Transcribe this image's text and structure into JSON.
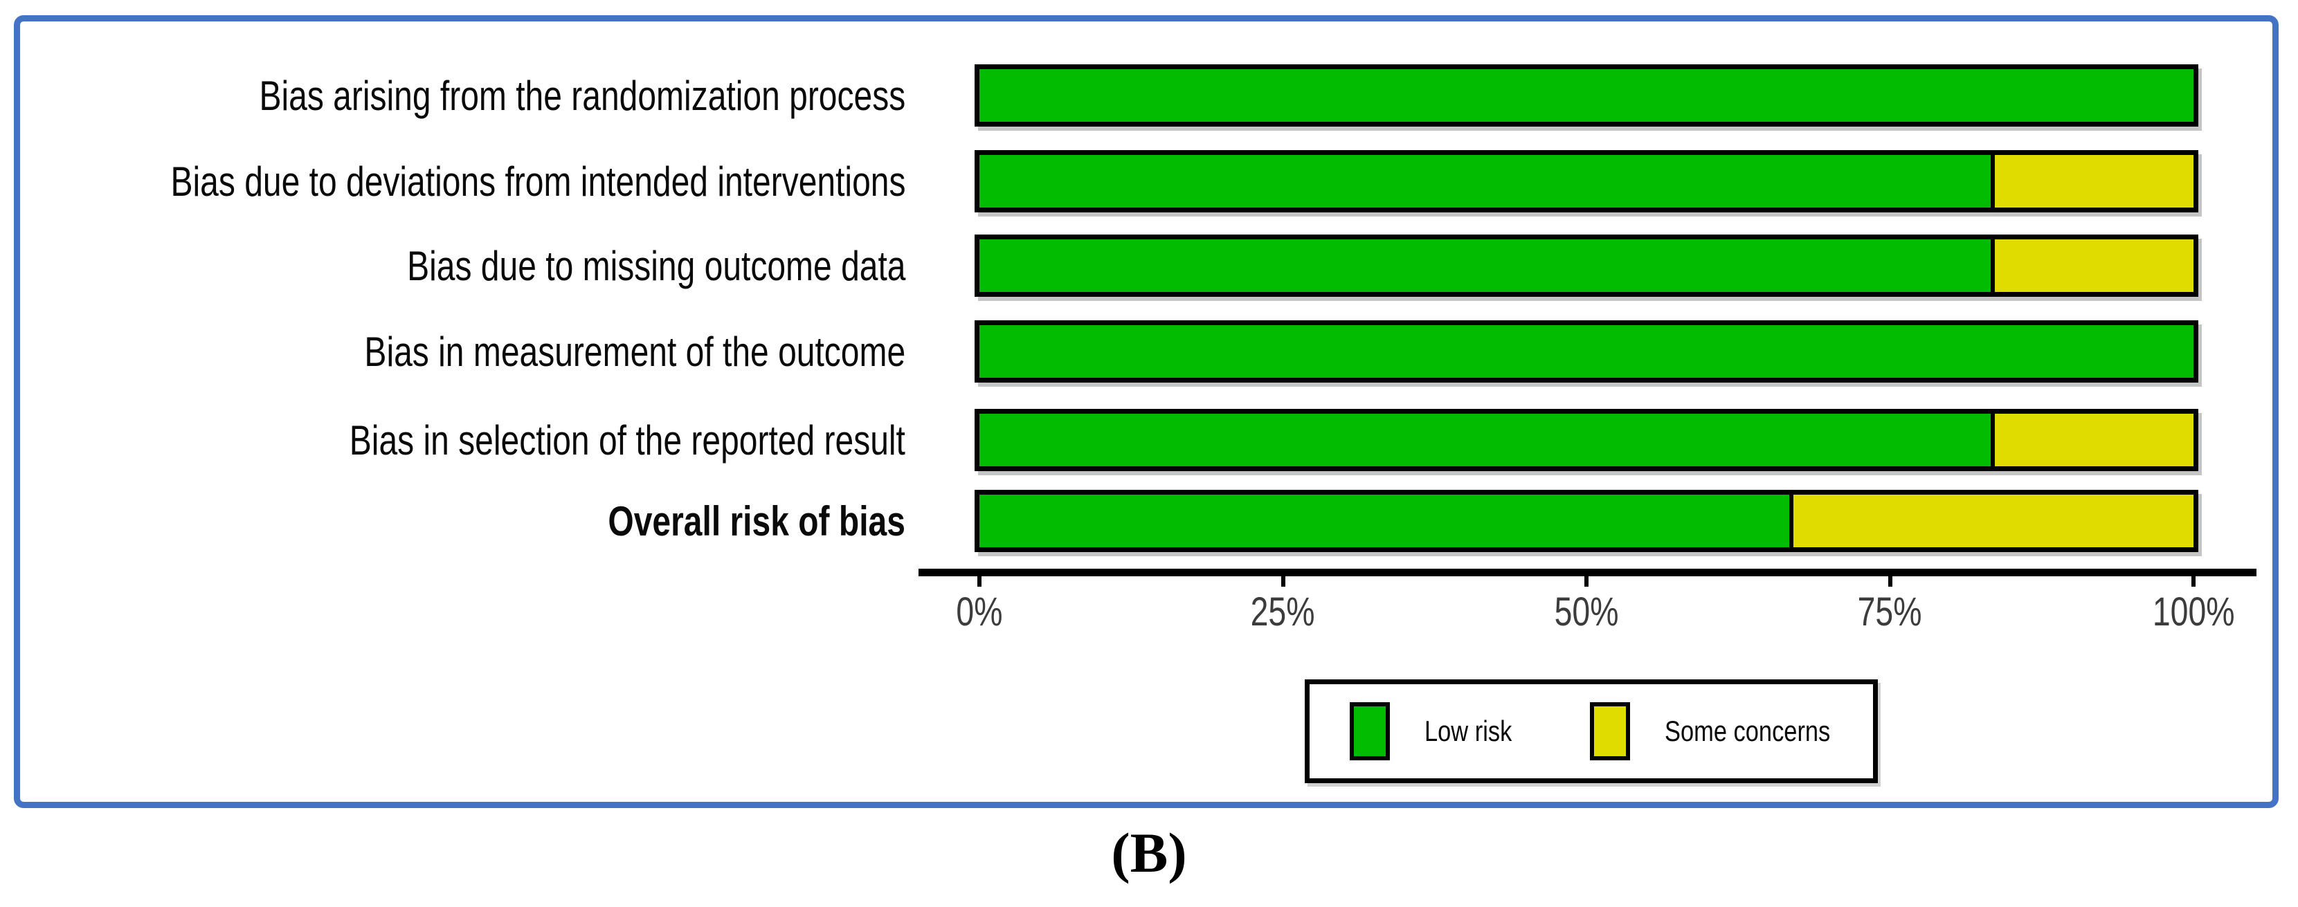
{
  "figure": {
    "caption": "(B)"
  },
  "legend": {
    "items": [
      {
        "label": "Low risk",
        "color": "#01bc01"
      },
      {
        "label": "Some concerns",
        "color": "#e0dc00"
      }
    ]
  },
  "chart_data": {
    "type": "bar",
    "orientation": "horizontal-stacked",
    "title": "",
    "xlabel": "",
    "ylabel": "",
    "xlim": [
      0,
      100
    ],
    "grid": false,
    "legend_position": "bottom-center",
    "categories": [
      "Bias arising from the randomization process",
      "Bias due to deviations from intended interventions",
      "Bias due to missing outcome data",
      "Bias in measurement of the outcome",
      "Bias in selection of the reported result",
      "Overall risk of bias"
    ],
    "emphasized_category": "Overall risk of bias",
    "series": [
      {
        "name": "Low risk",
        "color": "#01bc01",
        "values": [
          100,
          83.3,
          83.3,
          100,
          83.3,
          66.7
        ]
      },
      {
        "name": "Some concerns",
        "color": "#e0dc00",
        "values": [
          0,
          16.7,
          16.7,
          0,
          16.7,
          33.3
        ]
      }
    ],
    "x_ticks": [
      "0%",
      "25%",
      "50%",
      "75%",
      "100%"
    ],
    "x_tick_values": [
      0,
      25,
      50,
      75,
      100
    ]
  }
}
